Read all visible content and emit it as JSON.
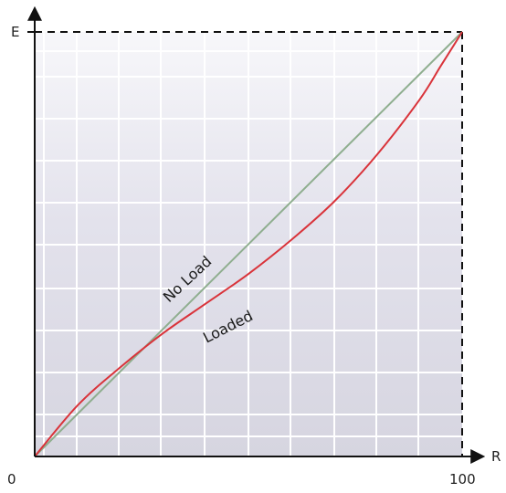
{
  "chart_data": {
    "type": "line",
    "title": "",
    "xlabel": "R",
    "ylabel": "E",
    "xlim": [
      0,
      100
    ],
    "ylim": [
      0,
      100
    ],
    "x_tick_labels": [
      "0",
      "100"
    ],
    "grid": true,
    "reference_lines": "dashed at x = 100 and y = 100",
    "series": [
      {
        "name": "No Load",
        "color": "#8fae8f",
        "x": [
          0,
          100
        ],
        "y": [
          0,
          100
        ]
      },
      {
        "name": "Loaded",
        "color": "#d9333a",
        "x": [
          0,
          10,
          20,
          30,
          40,
          50,
          60,
          70,
          80,
          90,
          95,
          100
        ],
        "y": [
          0,
          12,
          21,
          29,
          36,
          43,
          51,
          60,
          71,
          84,
          92,
          100
        ]
      }
    ]
  }
}
